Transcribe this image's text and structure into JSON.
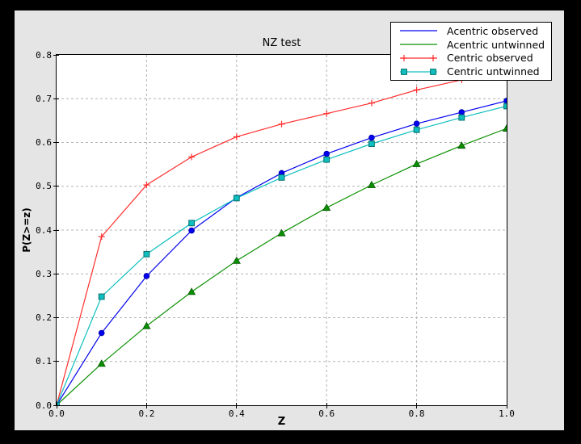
{
  "window": {
    "background": "#000000",
    "figure_background": "#e5e5e5",
    "plot_background": "#ffffff",
    "grid_color": "#b4b4b4",
    "axis_color": "#000000"
  },
  "chart_data": {
    "type": "line",
    "title": "NZ test",
    "xlabel": "Z",
    "ylabel": "P(Z>=z)",
    "xlim": [
      0.0,
      1.0
    ],
    "ylim": [
      0.0,
      0.8
    ],
    "grid": true,
    "legend_position": "upper right",
    "xticks": [
      0.0,
      0.2,
      0.4,
      0.6,
      0.8,
      1.0
    ],
    "xtick_labels": [
      "0.0",
      "0.2",
      "0.4",
      "0.6",
      "0.8",
      "1.0"
    ],
    "yticks": [
      0.0,
      0.1,
      0.2,
      0.3,
      0.4,
      0.5,
      0.6,
      0.7,
      0.8
    ],
    "ytick_labels": [
      "0.0",
      "0.1",
      "0.2",
      "0.3",
      "0.4",
      "0.5",
      "0.6",
      "0.7",
      "0.8"
    ],
    "x": [
      0.0,
      0.1,
      0.2,
      0.3,
      0.4,
      0.5,
      0.6,
      0.7,
      0.8,
      0.9,
      1.0
    ],
    "series": [
      {
        "name": "Acentric observed",
        "color": "#0000ee",
        "edge": "#0000aa",
        "marker": "circle",
        "values": [
          0.0,
          0.165,
          0.295,
          0.399,
          0.474,
          0.53,
          0.574,
          0.611,
          0.643,
          0.669,
          0.695
        ]
      },
      {
        "name": "Acentric untwinned",
        "color": "#0a9000",
        "edge": "#005200",
        "marker": "triangle",
        "values": [
          0.0,
          0.095,
          0.181,
          0.259,
          0.33,
          0.393,
          0.451,
          0.503,
          0.551,
          0.593,
          0.632
        ]
      },
      {
        "name": "Centric observed",
        "color": "#ff2d2d",
        "edge": "#ff2d2d",
        "marker": "plus",
        "values": [
          0.0,
          0.385,
          0.503,
          0.567,
          0.613,
          0.642,
          0.666,
          0.69,
          0.72,
          0.743,
          0.763
        ]
      },
      {
        "name": "Centric untwinned",
        "color": "#0fbfbf",
        "edge": "#076f6f",
        "marker": "square",
        "values": [
          0.0,
          0.248,
          0.345,
          0.416,
          0.473,
          0.52,
          0.561,
          0.597,
          0.629,
          0.657,
          0.683
        ]
      }
    ],
    "legend": [
      {
        "label": "Acentric observed",
        "color": "#0000ee",
        "edge": "#0000aa",
        "sample_marker": "none"
      },
      {
        "label": "Acentric untwinned",
        "color": "#0a9000",
        "edge": "#005200",
        "sample_marker": "none"
      },
      {
        "label": "Centric observed",
        "color": "#ff2d2d",
        "edge": "#ff2d2d",
        "sample_marker": "plus"
      },
      {
        "label": "Centric untwinned",
        "color": "#0fbfbf",
        "edge": "#076f6f",
        "sample_marker": "square"
      }
    ]
  }
}
